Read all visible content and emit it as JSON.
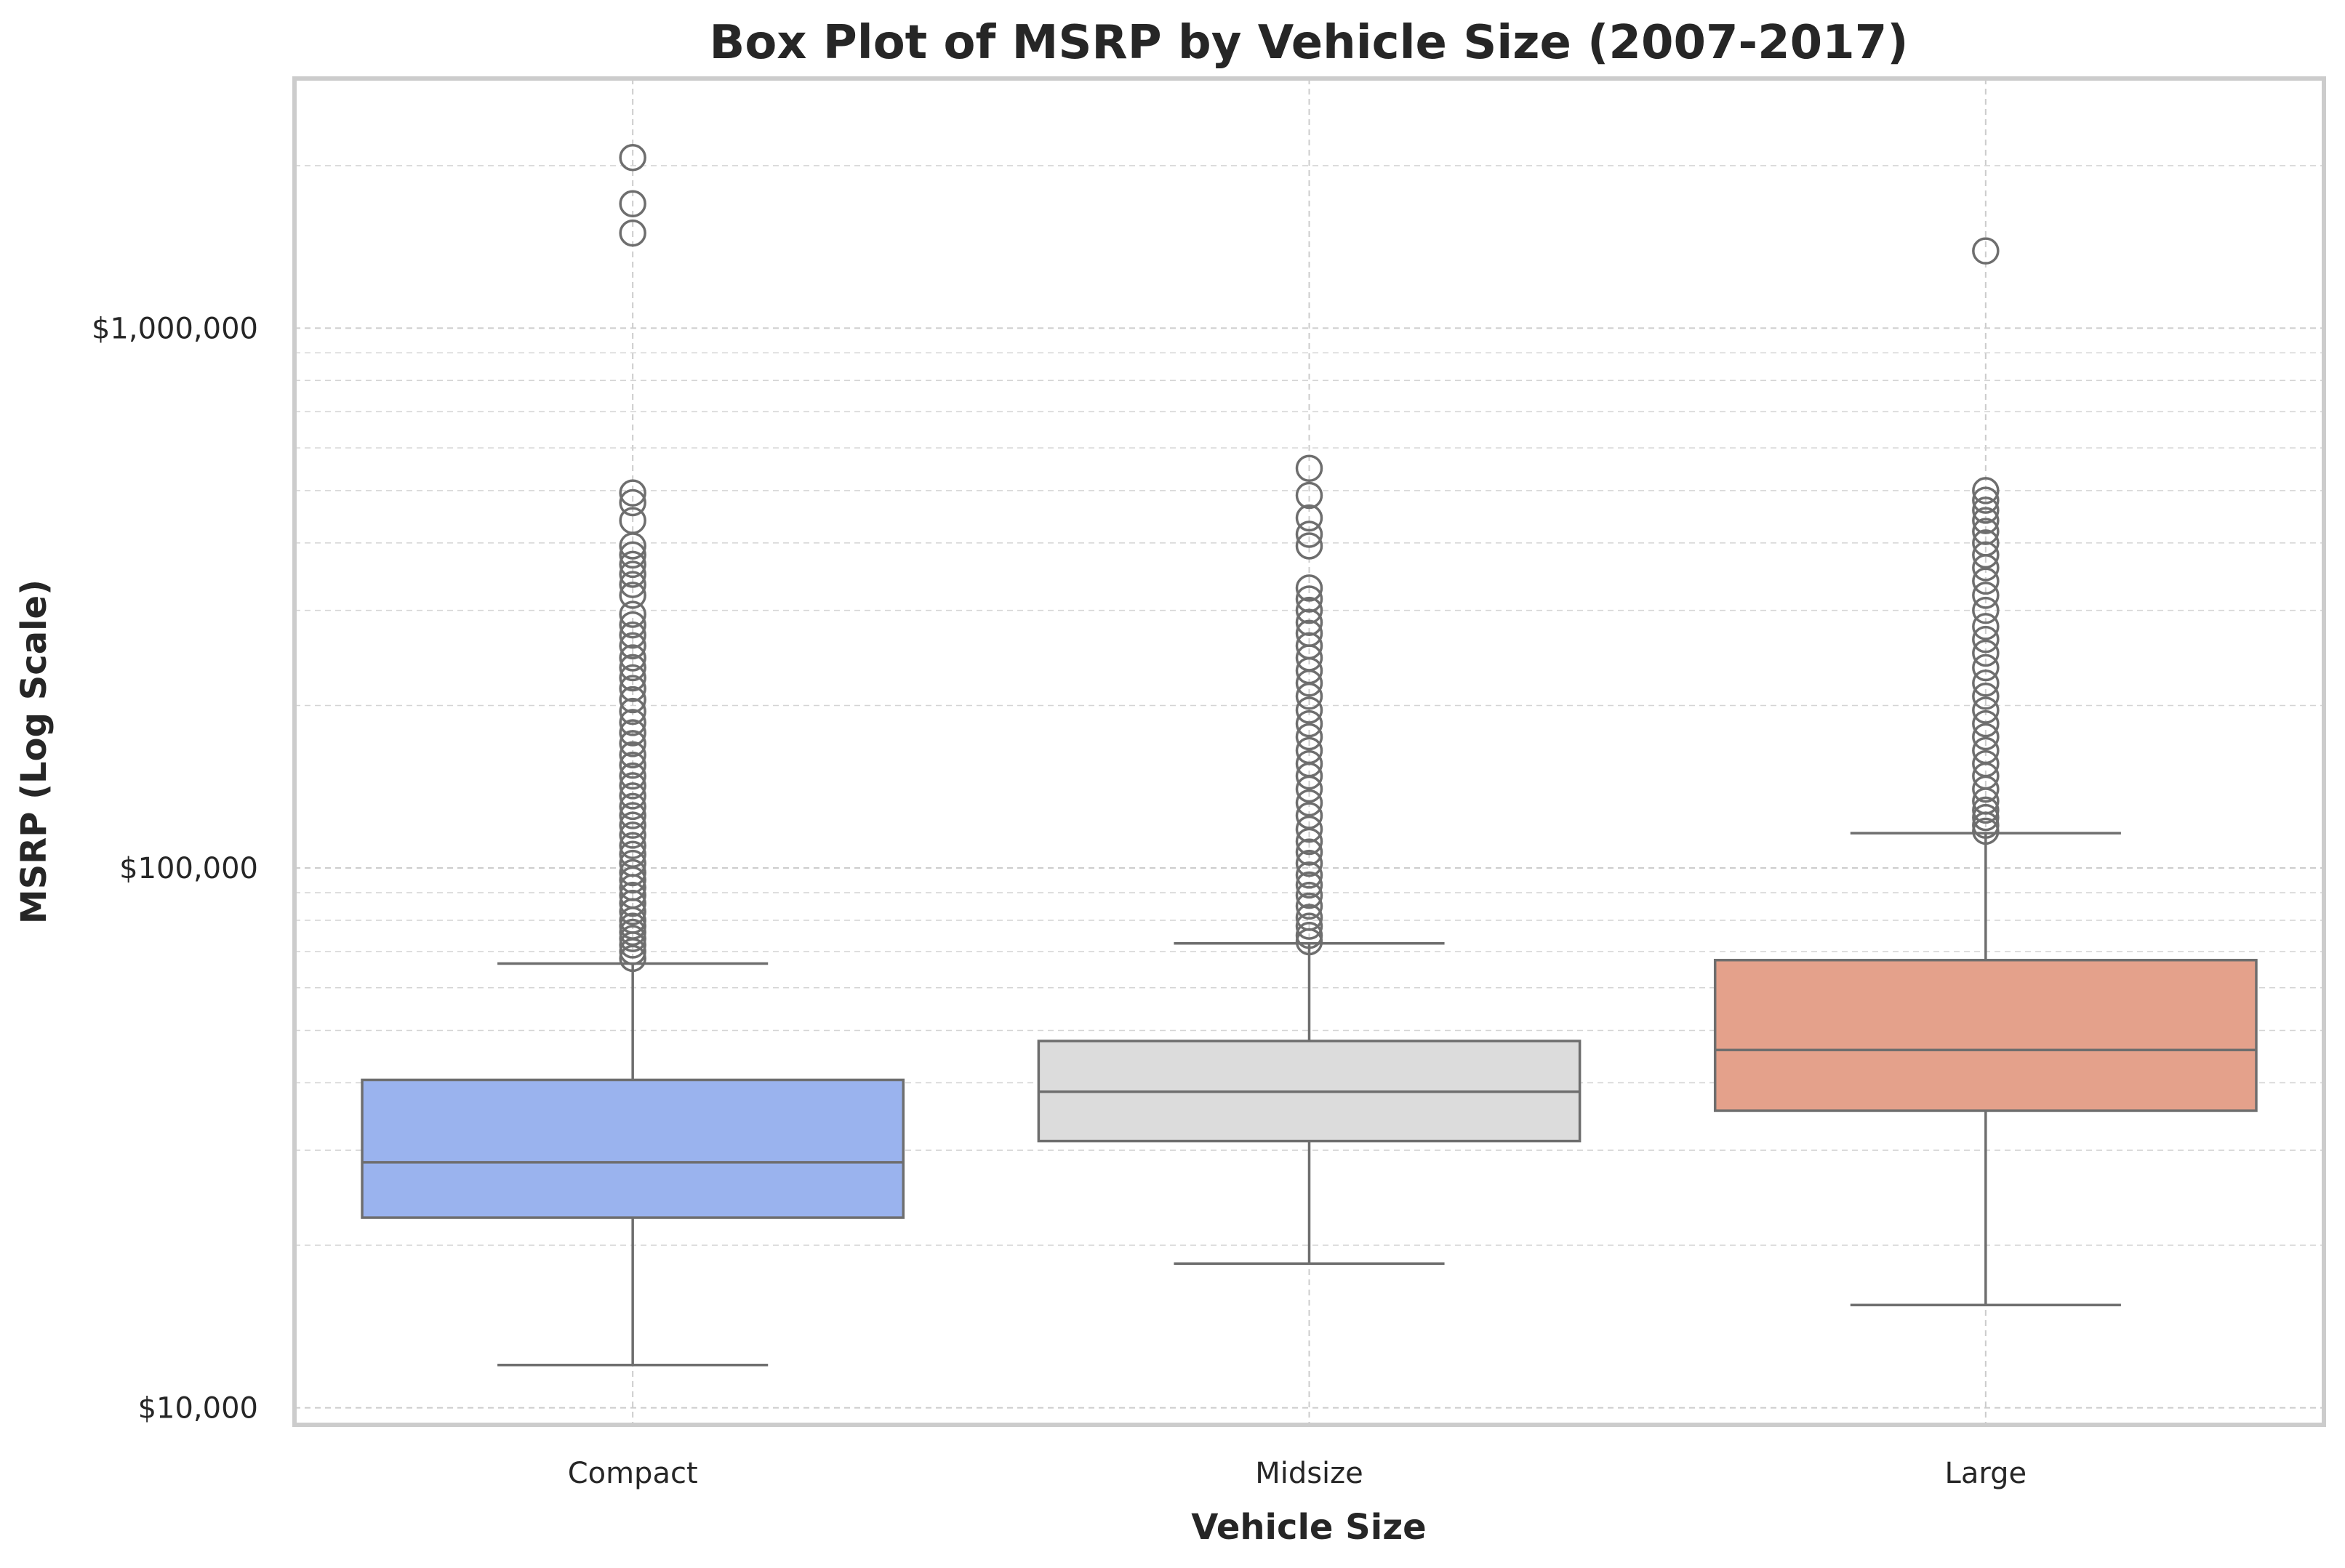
{
  "chart_data": {
    "type": "box",
    "title": "Box Plot of MSRP by Vehicle Size (2007-2017)",
    "xlabel": "Vehicle Size",
    "ylabel": "MSRP (Log Scale)",
    "yscale": "log",
    "ylim": [
      9300,
      2900000
    ],
    "yticks": [
      {
        "value": 10000,
        "label": "$10,000"
      },
      {
        "value": 100000,
        "label": "$100,000"
      },
      {
        "value": 1000000,
        "label": "$1,000,000"
      }
    ],
    "grid": true,
    "categories": [
      "Compact",
      "Midsize",
      "Large"
    ],
    "series": [
      {
        "category": "Compact",
        "color": "#9ab3ee",
        "whisker_low": 12000,
        "q1": 22500,
        "median": 28500,
        "q3": 40500,
        "whisker_high": 66500,
        "outliers": [
          68000,
          70000,
          72000,
          74000,
          76000,
          78000,
          80000,
          83000,
          86000,
          89000,
          92000,
          95000,
          98000,
          102000,
          106000,
          110000,
          115000,
          120000,
          125000,
          130000,
          136000,
          142000,
          148000,
          155000,
          162000,
          170000,
          178000,
          186000,
          195000,
          205000,
          215000,
          225000,
          235000,
          245000,
          258000,
          270000,
          282000,
          295000,
          320000,
          335000,
          350000,
          365000,
          380000,
          395000,
          440000,
          475000,
          495000,
          1500000,
          1700000,
          2070000
        ]
      },
      {
        "category": "Midsize",
        "color": "#dcdcdc",
        "whisker_low": 18500,
        "q1": 31200,
        "median": 38500,
        "q3": 47800,
        "whisker_high": 72500,
        "outliers": [
          73000,
          75000,
          78000,
          81000,
          85000,
          89000,
          93000,
          97000,
          102000,
          107000,
          112000,
          118000,
          125000,
          132000,
          140000,
          148000,
          156000,
          165000,
          175000,
          185000,
          196000,
          208000,
          220000,
          232000,
          245000,
          258000,
          272000,
          285000,
          300000,
          315000,
          330000,
          395000,
          415000,
          445000,
          490000,
          550000
        ]
      },
      {
        "category": "Large",
        "color": "#e4a18b",
        "whisker_low": 15500,
        "q1": 35500,
        "median": 46000,
        "q3": 67500,
        "whisker_high": 116000,
        "outliers": [
          117000,
          120000,
          124000,
          128000,
          133000,
          140000,
          148000,
          156000,
          165000,
          175000,
          185000,
          196000,
          208000,
          220000,
          235000,
          250000,
          265000,
          280000,
          300000,
          320000,
          340000,
          360000,
          380000,
          400000,
          420000,
          440000,
          460000,
          480000,
          500000,
          1390000
        ]
      }
    ]
  }
}
